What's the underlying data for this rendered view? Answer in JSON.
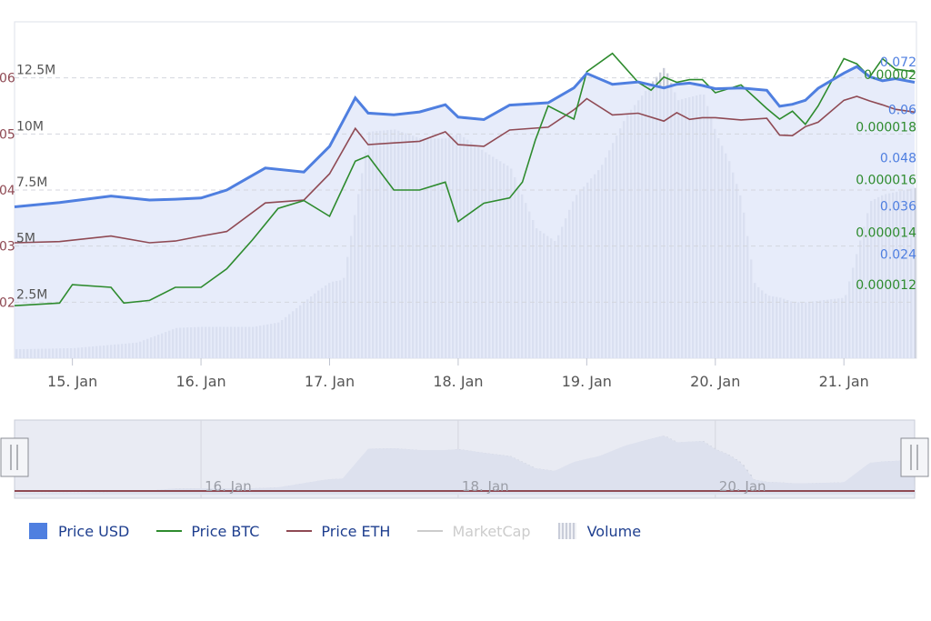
{
  "chart_data": {
    "type": "line",
    "x": [
      "15. Jan",
      "16. Jan",
      "17. Jan",
      "18. Jan",
      "19. Jan",
      "20. Jan",
      "21. Jan"
    ],
    "xlim": [
      -0.45,
      6.55
    ],
    "axes": {
      "volume": {
        "ticks": [
          "2.5M",
          "5M",
          "7.5M",
          "10M",
          "12.5M"
        ],
        "range": [
          0,
          15000000
        ]
      },
      "eth": {
        "ticks": [
          "02",
          "03",
          "04",
          "05",
          "06"
        ],
        "range": [
          0.01,
          0.07
        ]
      },
      "usd": {
        "ticks": [
          "0.024",
          "0.036",
          "0.048",
          "0.06",
          "0.072"
        ],
        "range": [
          0.0,
          0.084
        ]
      },
      "btc": {
        "ticks": [
          "0.000012",
          "0.000014",
          "0.000016",
          "0.000018",
          "0.00002"
        ],
        "range": [
          9.2e-06,
          2.2e-05
        ]
      }
    },
    "series": [
      {
        "name": "Price USD",
        "color": "#4f7fe0",
        "axis": "usd",
        "x": [
          -0.45,
          -0.1,
          0.3,
          0.6,
          0.8,
          1.0,
          1.2,
          1.5,
          1.8,
          2.0,
          2.2,
          2.3,
          2.5,
          2.7,
          2.9,
          3.0,
          3.2,
          3.4,
          3.7,
          3.9,
          4.0,
          4.2,
          4.4,
          4.6,
          4.7,
          4.8,
          4.9,
          5.0,
          5.2,
          5.4,
          5.5,
          5.6,
          5.7,
          5.8,
          6.0,
          6.1,
          6.2,
          6.3,
          6.4,
          6.55
        ],
        "values": [
          0.0378,
          0.0389,
          0.0405,
          0.0395,
          0.0397,
          0.04,
          0.042,
          0.0475,
          0.0465,
          0.0529,
          0.065,
          0.0612,
          0.0608,
          0.0615,
          0.0633,
          0.0602,
          0.0596,
          0.0632,
          0.0638,
          0.0675,
          0.0711,
          0.0684,
          0.069,
          0.0675,
          0.0684,
          0.0687,
          0.0681,
          0.0673,
          0.0675,
          0.0669,
          0.0629,
          0.0634,
          0.0644,
          0.0674,
          0.0712,
          0.0728,
          0.0703,
          0.0693,
          0.0698,
          0.0689
        ]
      },
      {
        "name": "Price BTC",
        "color": "#2e8b2e",
        "axis": "btc",
        "x": [
          -0.45,
          -0.1,
          0.0,
          0.3,
          0.4,
          0.6,
          0.8,
          1.0,
          1.2,
          1.4,
          1.6,
          1.8,
          2.0,
          2.2,
          2.3,
          2.5,
          2.7,
          2.9,
          3.0,
          3.2,
          3.4,
          3.5,
          3.6,
          3.7,
          3.9,
          4.0,
          4.2,
          4.4,
          4.5,
          4.6,
          4.7,
          4.8,
          4.9,
          5.0,
          5.2,
          5.4,
          5.5,
          5.6,
          5.7,
          5.8,
          6.0,
          6.1,
          6.2,
          6.3,
          6.4,
          6.55
        ],
        "values": [
          1.12e-05,
          1.13e-05,
          1.2e-05,
          1.19e-05,
          1.13e-05,
          1.14e-05,
          1.19e-05,
          1.19e-05,
          1.26e-05,
          1.37e-05,
          1.49e-05,
          1.52e-05,
          1.46e-05,
          1.67e-05,
          1.69e-05,
          1.56e-05,
          1.56e-05,
          1.59e-05,
          1.44e-05,
          1.51e-05,
          1.53e-05,
          1.59e-05,
          1.75e-05,
          1.88e-05,
          1.83e-05,
          2.01e-05,
          2.08e-05,
          1.97e-05,
          1.94e-05,
          1.99e-05,
          1.97e-05,
          1.98e-05,
          1.98e-05,
          1.93e-05,
          1.96e-05,
          1.87e-05,
          1.83e-05,
          1.86e-05,
          1.81e-05,
          1.88e-05,
          2.06e-05,
          2.04e-05,
          1.99e-05,
          2.06e-05,
          2.02e-05,
          2.01e-05
        ]
      },
      {
        "name": "Price ETH",
        "color": "#8f4a54",
        "axis": "eth",
        "x": [
          -0.45,
          -0.1,
          0.3,
          0.6,
          0.8,
          1.0,
          1.2,
          1.5,
          1.8,
          2.0,
          2.2,
          2.3,
          2.5,
          2.7,
          2.9,
          3.0,
          3.2,
          3.4,
          3.7,
          3.9,
          4.0,
          4.2,
          4.4,
          4.6,
          4.7,
          4.8,
          4.9,
          5.0,
          5.2,
          5.4,
          5.5,
          5.6,
          5.7,
          5.8,
          6.0,
          6.1,
          6.2,
          6.3,
          6.4,
          6.55
        ],
        "values": [
          0.0306,
          0.0308,
          0.0318,
          0.0306,
          0.0309,
          0.0318,
          0.0326,
          0.0377,
          0.0382,
          0.0429,
          0.051,
          0.0481,
          0.0484,
          0.0487,
          0.0504,
          0.0481,
          0.0478,
          0.0507,
          0.0512,
          0.0543,
          0.0563,
          0.0534,
          0.0537,
          0.0523,
          0.0538,
          0.0526,
          0.0529,
          0.0529,
          0.0525,
          0.0528,
          0.0498,
          0.0497,
          0.0513,
          0.0521,
          0.056,
          0.0567,
          0.0559,
          0.0552,
          0.0544,
          0.0539
        ]
      },
      {
        "name": "Volume",
        "type": "column",
        "color": "#c9cdd9",
        "axis": "volume",
        "x": [
          -0.45,
          0.0,
          0.5,
          0.8,
          1.0,
          1.4,
          1.6,
          1.9,
          2.0,
          2.1,
          2.3,
          2.5,
          2.7,
          2.9,
          3.0,
          3.2,
          3.4,
          3.6,
          3.75,
          3.9,
          4.1,
          4.3,
          4.5,
          4.6,
          4.7,
          4.9,
          5.0,
          5.1,
          5.2,
          5.3,
          5.4,
          5.5,
          5.6,
          5.7,
          6.0,
          6.2,
          6.3,
          6.55
        ],
        "values": [
          400000,
          450000,
          700000,
          1350000,
          1400000,
          1400000,
          1600000,
          3000000,
          3400000,
          3500000,
          10100000,
          10200000,
          9800000,
          9800000,
          10000000,
          9200000,
          8500000,
          5800000,
          5200000,
          7200000,
          8500000,
          10800000,
          12300000,
          13000000,
          11500000,
          11800000,
          10000000,
          8800000,
          7000000,
          3300000,
          2800000,
          2700000,
          2500000,
          2500000,
          2700000,
          7000000,
          7300000,
          7600000
        ]
      },
      {
        "name": "MarketCap",
        "color": "#cccccc",
        "axis": "none",
        "x": [],
        "values": [],
        "visible": false
      }
    ],
    "navigator": {
      "ticks": [
        "16. Jan",
        "18. Jan",
        "20. Jan"
      ]
    },
    "legend_position": "bottom-left"
  },
  "legend": {
    "items": [
      {
        "label": "Price USD",
        "enabled": true
      },
      {
        "label": "Price BTC",
        "enabled": true
      },
      {
        "label": "Price ETH",
        "enabled": true
      },
      {
        "label": "MarketCap",
        "enabled": false
      },
      {
        "label": "Volume",
        "enabled": true
      }
    ]
  },
  "colors": {
    "usd": "#4f7fe0",
    "btc": "#2e8b2e",
    "eth": "#8f4a54",
    "volume": "#c9cdd9",
    "marketcap": "#cccccc",
    "area_fill": "#e4e8f8"
  }
}
